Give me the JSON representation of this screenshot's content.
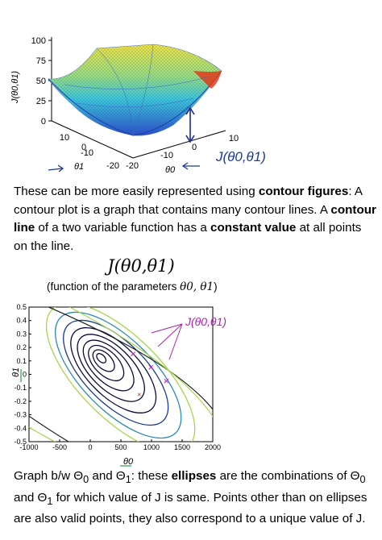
{
  "surface_plot": {
    "zlabel": "J(θ0,θ1)",
    "z_ticks": [
      "100",
      "75",
      "50",
      "25",
      "0"
    ],
    "theta1_ticks": [
      "10",
      "0",
      "-10",
      "-20"
    ],
    "theta0_ticks": [
      "10",
      "0",
      "-10",
      "-20"
    ],
    "theta1_label": "θ1",
    "theta0_label": "θ0",
    "handwritten_annotation": "J(θ0,θ1)"
  },
  "paragraph1": {
    "part1": "These can be more easily represented using ",
    "bold1": "contour figures",
    "part2": ": A contour plot is a graph that contains many contour lines. A ",
    "bold2": "contour line",
    "part3": " of a two variable function has a ",
    "bold3": "constant value",
    "part4": " at all points on the line."
  },
  "contour_plot": {
    "title": "J(θ0,θ1)",
    "caption_text": "(function of the parameters ",
    "caption_math": "θ0, θ1",
    "caption_close": ")",
    "y_label": "θ1",
    "x_label": "θ0",
    "handwritten_annotation": "J(θ0,θ1)"
  },
  "chart_data": {
    "type": "contour",
    "title": "J(θ0,θ1)",
    "xlabel": "θ0",
    "ylabel": "θ1",
    "xlim": [
      -1000,
      2000
    ],
    "ylim": [
      -0.5,
      0.5
    ],
    "x_ticks": [
      "-1000",
      "-500",
      "0",
      "500",
      "1000",
      "1500",
      "2000"
    ],
    "y_ticks": [
      "0.5",
      "0.4",
      "0.3",
      "0.2",
      "0.1",
      "0",
      "-0.1",
      "-0.2",
      "-0.3",
      "-0.4",
      "-0.5"
    ],
    "center": [
      180,
      0.12
    ],
    "minimum_marker": [
      800,
      -0.15
    ],
    "annotated_points": [
      [
        700,
        0.15
      ],
      [
        990,
        0.05
      ],
      [
        1240,
        -0.05
      ]
    ],
    "levels": 9
  },
  "paragraph2": {
    "part1": "Graph b/w Θ",
    "sub0": "0",
    "part2": " and Θ",
    "sub1": "1",
    "part3": ": these ",
    "bold1": "ellipses",
    "part4": " are the combinations of Θ",
    "sub2": "0",
    "part5": " and Θ",
    "sub3": "1",
    "part6": " for which value of J is same. Points other than on ellipses are also valid points, they also correspond to a unique value of J."
  }
}
